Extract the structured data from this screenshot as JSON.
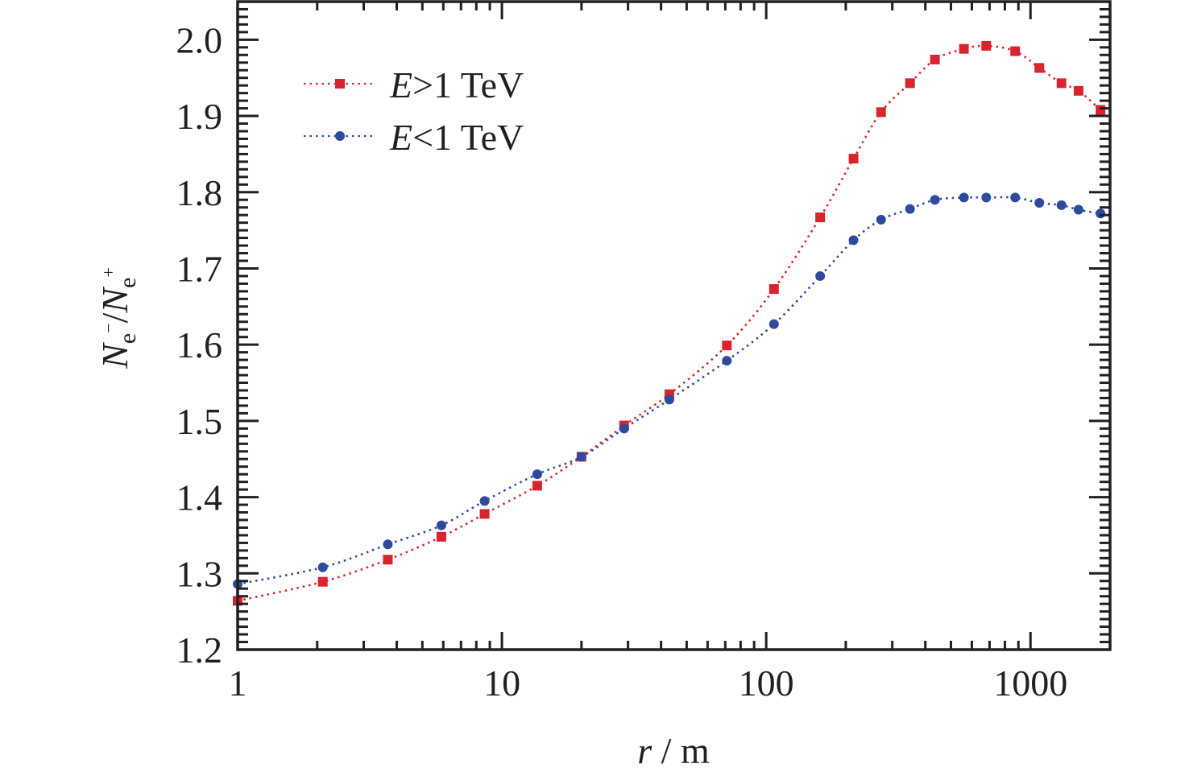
{
  "chart_data": {
    "type": "line",
    "title": "",
    "xlabel": {
      "var": "r",
      "unit": "m",
      "text": "r / m"
    },
    "ylabel": {
      "text": "Ne-/Ne+",
      "main": "N",
      "sub1": "e",
      "sup1": "−",
      "main2": "N",
      "sub2": "e",
      "sup2": "+"
    },
    "xscale": "log",
    "xlim": [
      1,
      2000
    ],
    "ylim": [
      1.2,
      2.05
    ],
    "x_ticks": [
      1,
      10,
      100,
      1000
    ],
    "x_tick_labels": [
      "1",
      "10",
      "100",
      "1000"
    ],
    "y_ticks": [
      1.2,
      1.3,
      1.4,
      1.5,
      1.6,
      1.7,
      1.8,
      1.9,
      2.0
    ],
    "y_tick_labels": [
      "1.2",
      "1.3",
      "1.4",
      "1.5",
      "1.6",
      "1.7",
      "1.8",
      "1.9",
      "2.0"
    ],
    "y_minor_step": 0.01,
    "grid": false,
    "legend_position": "top-left",
    "x": [
      1.0,
      2.1,
      3.7,
      5.9,
      8.6,
      13.6,
      20,
      29,
      43,
      71,
      107,
      160,
      214,
      272,
      350,
      435,
      560,
      680,
      875,
      1080,
      1310,
      1520,
      1840
    ],
    "series": [
      {
        "name": "E>1 TeV",
        "legend": {
          "var": "E",
          "rel": ">1 TeV"
        },
        "color": "#d9232e",
        "marker": "square",
        "linestyle": "dotted",
        "values": [
          1.264,
          1.289,
          1.318,
          1.348,
          1.378,
          1.415,
          1.453,
          1.494,
          1.535,
          1.599,
          1.673,
          1.767,
          1.844,
          1.905,
          1.943,
          1.974,
          1.988,
          1.992,
          1.985,
          1.963,
          1.943,
          1.933,
          1.908
        ]
      },
      {
        "name": "E<1 TeV",
        "legend": {
          "var": "E",
          "rel": "<1 TeV"
        },
        "color": "#2e4a9e",
        "marker": "circle",
        "linestyle": "dotted",
        "values": [
          1.286,
          1.308,
          1.338,
          1.363,
          1.395,
          1.43,
          1.453,
          1.49,
          1.528,
          1.579,
          1.627,
          1.69,
          1.737,
          1.764,
          1.778,
          1.79,
          1.793,
          1.793,
          1.793,
          1.786,
          1.783,
          1.777,
          1.772
        ]
      }
    ]
  }
}
